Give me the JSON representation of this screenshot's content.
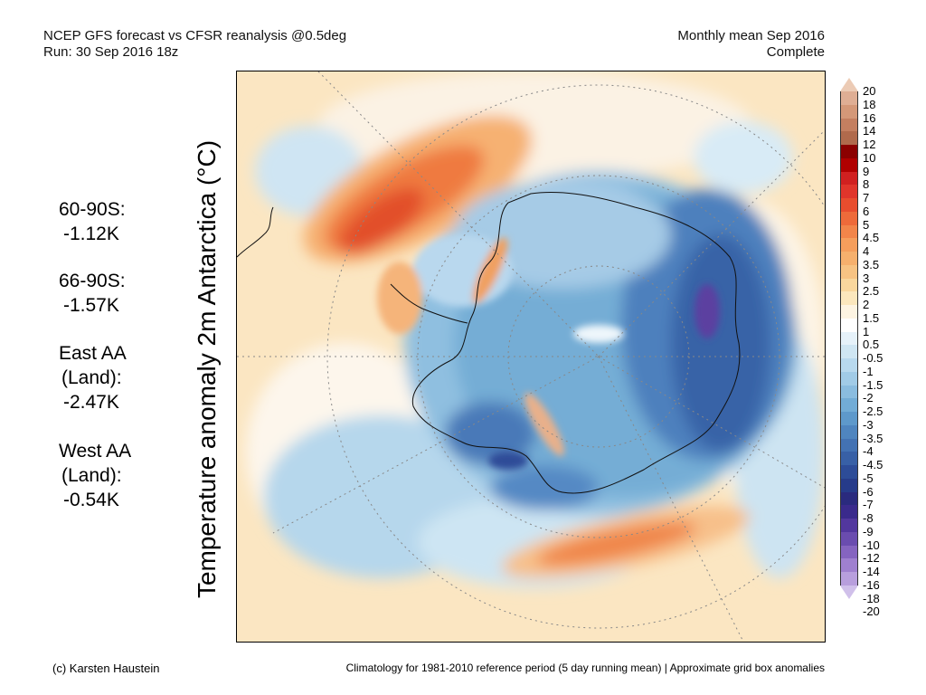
{
  "header": {
    "title_line1": "NCEP GFS forecast vs CFSR reanalysis @0.5deg",
    "title_line2": "Run: 30 Sep 2016 18z",
    "period_line1": "Monthly mean Sep 2016",
    "period_line2": "Complete"
  },
  "y_label": "Temperature anomaly 2m Antarctica (°C)",
  "stats": [
    {
      "label": "60-90S:",
      "value": "-1.12K"
    },
    {
      "label": "66-90S:",
      "value": "-1.57K"
    },
    {
      "label": "East AA",
      "label2": "(Land):",
      "value": "-2.47K"
    },
    {
      "label": "West AA",
      "label2": "(Land):",
      "value": "-0.54K"
    }
  ],
  "colorbar": {
    "labels": [
      "20",
      "18",
      "16",
      "14",
      "12",
      "10",
      "9",
      "8",
      "7",
      "6",
      "5",
      "4.5",
      "4",
      "3.5",
      "3",
      "2.5",
      "2",
      "1.5",
      "1",
      "0.5",
      "-0.5",
      "-1",
      "-1.5",
      "-2",
      "-2.5",
      "-3",
      "-3.5",
      "-4",
      "-4.5",
      "-5",
      "-6",
      "-7",
      "-8",
      "-9",
      "-10",
      "-12",
      "-14",
      "-16",
      "-18",
      "-20"
    ],
    "colors": [
      "#eccbb5",
      "#dfae94",
      "#d49878",
      "#c47f60",
      "#b06a4c",
      "#8b0000",
      "#b00000",
      "#d02020",
      "#e0352b",
      "#e84d2e",
      "#ee6a3a",
      "#f2854a",
      "#f59e5c",
      "#f6b06d",
      "#f7c383",
      "#f9d79d",
      "#fbe7bd",
      "#fdf4e2",
      "#ffffff",
      "#e6f2fa",
      "#cfe6f3",
      "#b8d9ee",
      "#a1cbe7",
      "#8abcdf",
      "#72acd6",
      "#5e99cb",
      "#4f85bf",
      "#4372b3",
      "#3860a6",
      "#2d4c98",
      "#263b8a",
      "#2a2a7e",
      "#3a2a8c",
      "#52379e",
      "#6a4caf",
      "#8564c0",
      "#9f80cf",
      "#b89fdd",
      "#d0c0ea"
    ]
  },
  "footer": {
    "credit": "(c) Karsten Haustein",
    "note": "Climatology for 1981-2010 reference period (5 day running mean) | Approximate grid box anomalies"
  }
}
